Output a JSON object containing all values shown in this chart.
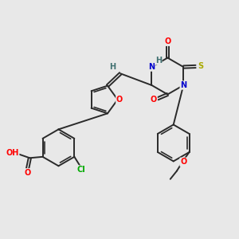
{
  "bg_color": "#e8e8e8",
  "bond_color": "#2a2a2a",
  "bond_width": 1.4,
  "atom_colors": {
    "O": "#ff0000",
    "N": "#0000cc",
    "S": "#aaaa00",
    "Cl": "#00aa00",
    "H": "#407070",
    "C": "#2a2a2a"
  },
  "font_size": 7.0
}
